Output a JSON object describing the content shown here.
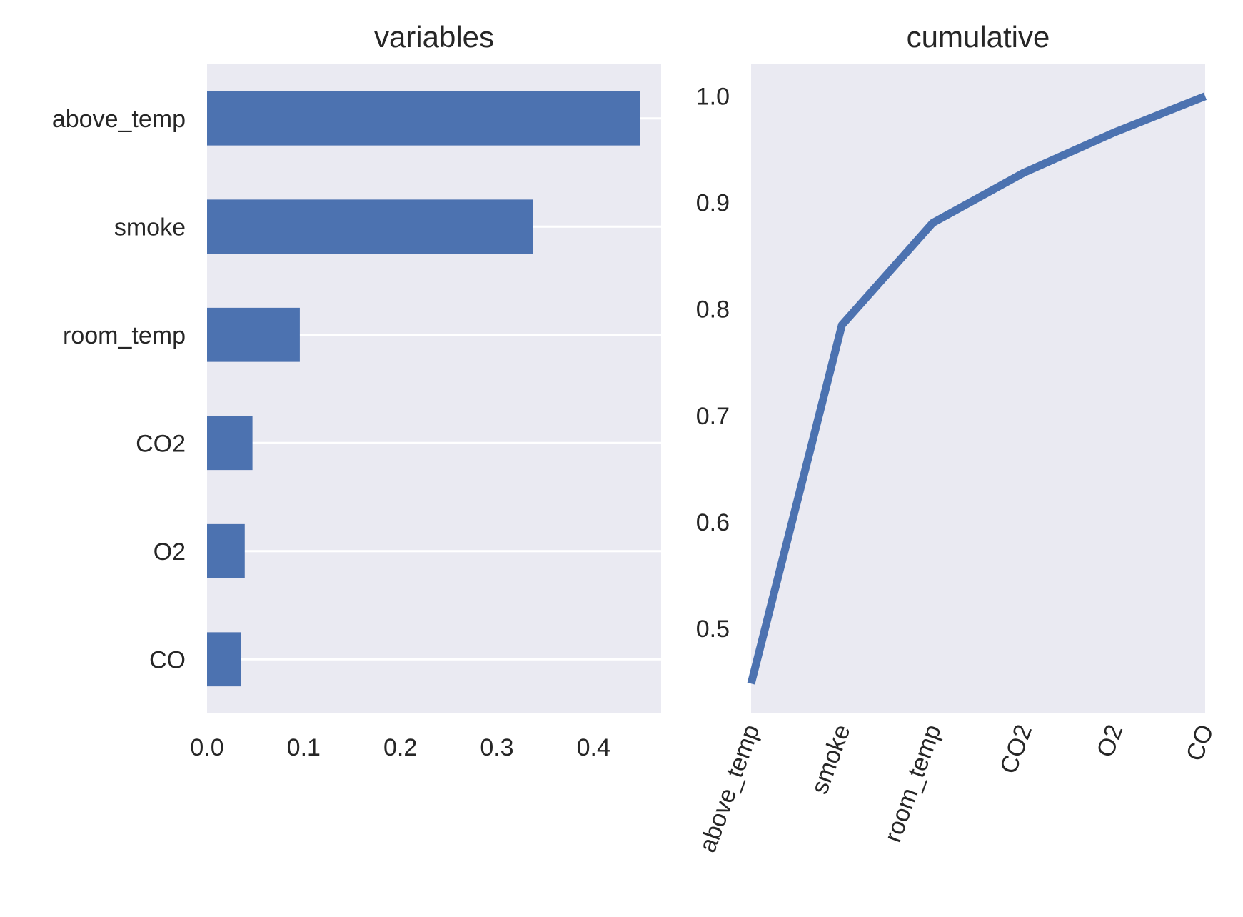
{
  "colors": {
    "bar": "#4c72b0",
    "line": "#4c72b0",
    "panel_bg": "#eaeaf2",
    "grid": "#ffffff",
    "text": "#262626"
  },
  "chart_data": [
    {
      "type": "bar",
      "orientation": "horizontal",
      "title": "variables",
      "categories": [
        "above_temp",
        "smoke",
        "room_temp",
        "CO2",
        "O2",
        "CO"
      ],
      "values": [
        0.448,
        0.337,
        0.096,
        0.047,
        0.039,
        0.035
      ],
      "xlim": [
        0,
        0.47
      ],
      "xticks": [
        "0.0",
        "0.1",
        "0.2",
        "0.3",
        "0.4"
      ],
      "xtick_values": [
        0.0,
        0.1,
        0.2,
        0.3,
        0.4
      ],
      "grid": true
    },
    {
      "type": "line",
      "title": "cumulative",
      "x": [
        "above_temp",
        "smoke",
        "room_temp",
        "CO2",
        "O2",
        "CO"
      ],
      "values": [
        0.448,
        0.785,
        0.881,
        0.928,
        0.966,
        1.0
      ],
      "ylim": [
        0.42,
        1.03
      ],
      "yticks": [
        "0.5",
        "0.6",
        "0.7",
        "0.8",
        "0.9",
        "1.0"
      ],
      "ytick_values": [
        0.5,
        0.6,
        0.7,
        0.8,
        0.9,
        1.0
      ],
      "xtick_rotation_deg": 70,
      "grid": false
    }
  ]
}
